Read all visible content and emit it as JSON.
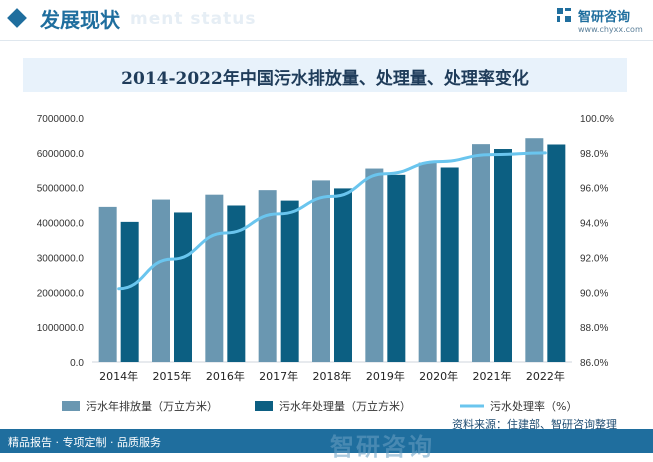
{
  "header": {
    "title": "发展现状",
    "watermark": "ment status",
    "brand_name": "智研咨询",
    "brand_site": "www.chyxx.com"
  },
  "chart_data": {
    "type": "bar",
    "title": "2014-2022年中国污水排放量、处理量、处理率变化",
    "categories": [
      "2014年",
      "2015年",
      "2016年",
      "2017年",
      "2018年",
      "2019年",
      "2020年",
      "2021年",
      "2022年"
    ],
    "series": [
      {
        "name": "污水年排放量（万立方米）",
        "kind": "bar",
        "axis": "left",
        "color": "#6a97b1",
        "values": [
          4450000,
          4660000,
          4800000,
          4930000,
          5210000,
          5550000,
          5720000,
          6250000,
          6420000
        ]
      },
      {
        "name": "污水年处理量（万立方米）",
        "kind": "bar",
        "axis": "left",
        "color": "#0c5f82",
        "values": [
          4020000,
          4290000,
          4490000,
          4630000,
          4980000,
          5370000,
          5580000,
          6110000,
          6240000
        ]
      },
      {
        "name": "污水处理率（%）",
        "kind": "line",
        "axis": "right",
        "color": "#6ac5ee",
        "values": [
          90.2,
          91.9,
          93.4,
          94.5,
          95.5,
          96.8,
          97.5,
          97.9,
          98.0
        ]
      }
    ],
    "left_axis": {
      "ylim": [
        0,
        7000000
      ],
      "ticks": [
        "0.0",
        "1000000.0",
        "2000000.0",
        "3000000.0",
        "4000000.0",
        "5000000.0",
        "6000000.0",
        "7000000.0"
      ]
    },
    "right_axis": {
      "ylim": [
        86.0,
        100.0
      ],
      "ticks": [
        "86.0%",
        "88.0%",
        "90.0%",
        "92.0%",
        "94.0%",
        "96.0%",
        "98.0%",
        "100.0%"
      ]
    },
    "grid": false,
    "legend_position": "bottom"
  },
  "source": "资料来源：住建部、智研咨询整理",
  "footer": {
    "left_text": "精品报告 · 专项定制 · 品质服务",
    "watermark": "智研咨询"
  }
}
